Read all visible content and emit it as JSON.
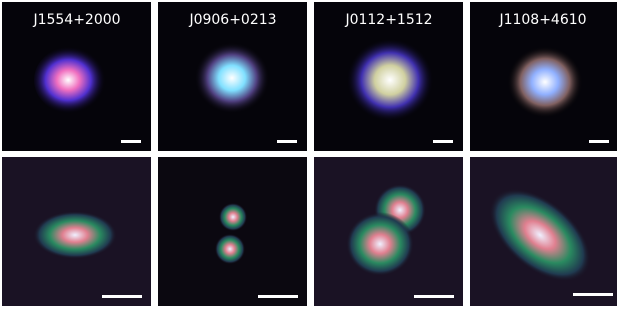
{
  "panels": [
    {
      "label": "J1554+2000"
    },
    {
      "label": "J0906+0213"
    },
    {
      "label": "J0112+1512"
    },
    {
      "label": "J1108+4610"
    }
  ]
}
